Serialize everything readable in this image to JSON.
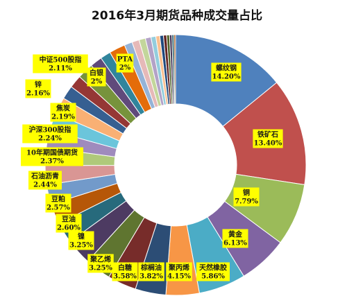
{
  "chart_data": {
    "type": "pie",
    "title": "2016年3月期货品种成交量占比",
    "slices": [
      {
        "label": "螺纹钢",
        "value": 14.2,
        "display": "14.20%",
        "color": "#4f81bd"
      },
      {
        "label": "铁矿石",
        "value": 13.4,
        "display": "13.40%",
        "color": "#c0504d"
      },
      {
        "label": "铜",
        "value": 7.79,
        "display": "7.79%",
        "color": "#9bbb59"
      },
      {
        "label": "黄金",
        "value": 6.13,
        "display": "6.13%",
        "color": "#8064a2"
      },
      {
        "label": "天然橡胶",
        "value": 5.86,
        "display": "5.86%",
        "color": "#4bacc6"
      },
      {
        "label": "聚丙烯",
        "value": 4.15,
        "display": "4.15%",
        "color": "#f79646"
      },
      {
        "label": "棕榈油",
        "value": 3.82,
        "display": "3.82%",
        "color": "#2c4d75"
      },
      {
        "label": "白糖",
        "value": 3.58,
        "display": "3.58%",
        "color": "#772c2a"
      },
      {
        "label": "聚乙烯",
        "value": 3.25,
        "display": "3.25%",
        "color": "#5f7530"
      },
      {
        "label": "镍",
        "value": 3.25,
        "display": "3.25%",
        "color": "#4d3b62"
      },
      {
        "label": "豆油",
        "value": 2.6,
        "display": "2.60%",
        "color": "#276a7c"
      },
      {
        "label": "豆粕",
        "value": 2.57,
        "display": "2.57%",
        "color": "#b65708"
      },
      {
        "label": "石油沥青",
        "value": 2.44,
        "display": "2.44%",
        "color": "#729aca"
      },
      {
        "label": "10年期国债期货",
        "value": 2.37,
        "display": "2.37%",
        "color": "#d99694"
      },
      {
        "label": "沪深300股指",
        "value": 2.24,
        "display": "2.24%",
        "color": "#afc97a"
      },
      {
        "label": "焦炭",
        "value": 2.19,
        "display": "2.19%",
        "color": "#9f8bbd"
      },
      {
        "label": "锌",
        "value": 2.16,
        "display": "2.16%",
        "color": "#6bc5db"
      },
      {
        "label": "中证500股指",
        "value": 2.11,
        "display": "2.11%",
        "color": "#f9b074"
      },
      {
        "label": "",
        "value": 1.7,
        "display": "",
        "color": "#365f91"
      },
      {
        "label": "",
        "value": 1.6,
        "display": "",
        "color": "#953735"
      },
      {
        "label": "白银",
        "value": 2.0,
        "display": "2%",
        "color": "#77933c"
      },
      {
        "label": "",
        "value": 1.5,
        "display": "",
        "color": "#604a7b"
      },
      {
        "label": "",
        "value": 1.3,
        "display": "",
        "color": "#31859c"
      },
      {
        "label": "PTA",
        "value": 2.0,
        "display": "2%",
        "color": "#e46c0a"
      },
      {
        "label": "",
        "value": 1.0,
        "display": "",
        "color": "#95b3d7"
      },
      {
        "label": "",
        "value": 0.9,
        "display": "",
        "color": "#e6b9b8"
      },
      {
        "label": "",
        "value": 0.8,
        "display": "",
        "color": "#c3d69b"
      },
      {
        "label": "",
        "value": 0.7,
        "display": "",
        "color": "#b3a2c7"
      },
      {
        "label": "",
        "value": 0.6,
        "display": "",
        "color": "#93cddd"
      },
      {
        "label": "",
        "value": 0.5,
        "display": "",
        "color": "#fac090"
      },
      {
        "label": "",
        "value": 0.45,
        "display": "",
        "color": "#1f497d"
      },
      {
        "label": "",
        "value": 0.4,
        "display": "",
        "color": "#632523"
      },
      {
        "label": "",
        "value": 0.35,
        "display": "",
        "color": "#4f6228"
      },
      {
        "label": "",
        "value": 0.3,
        "display": "",
        "color": "#403151"
      },
      {
        "label": "",
        "value": 0.25,
        "display": "",
        "color": "#215968"
      },
      {
        "label": "",
        "value": 0.2,
        "display": "",
        "color": "#984807"
      }
    ],
    "legend": "none"
  }
}
